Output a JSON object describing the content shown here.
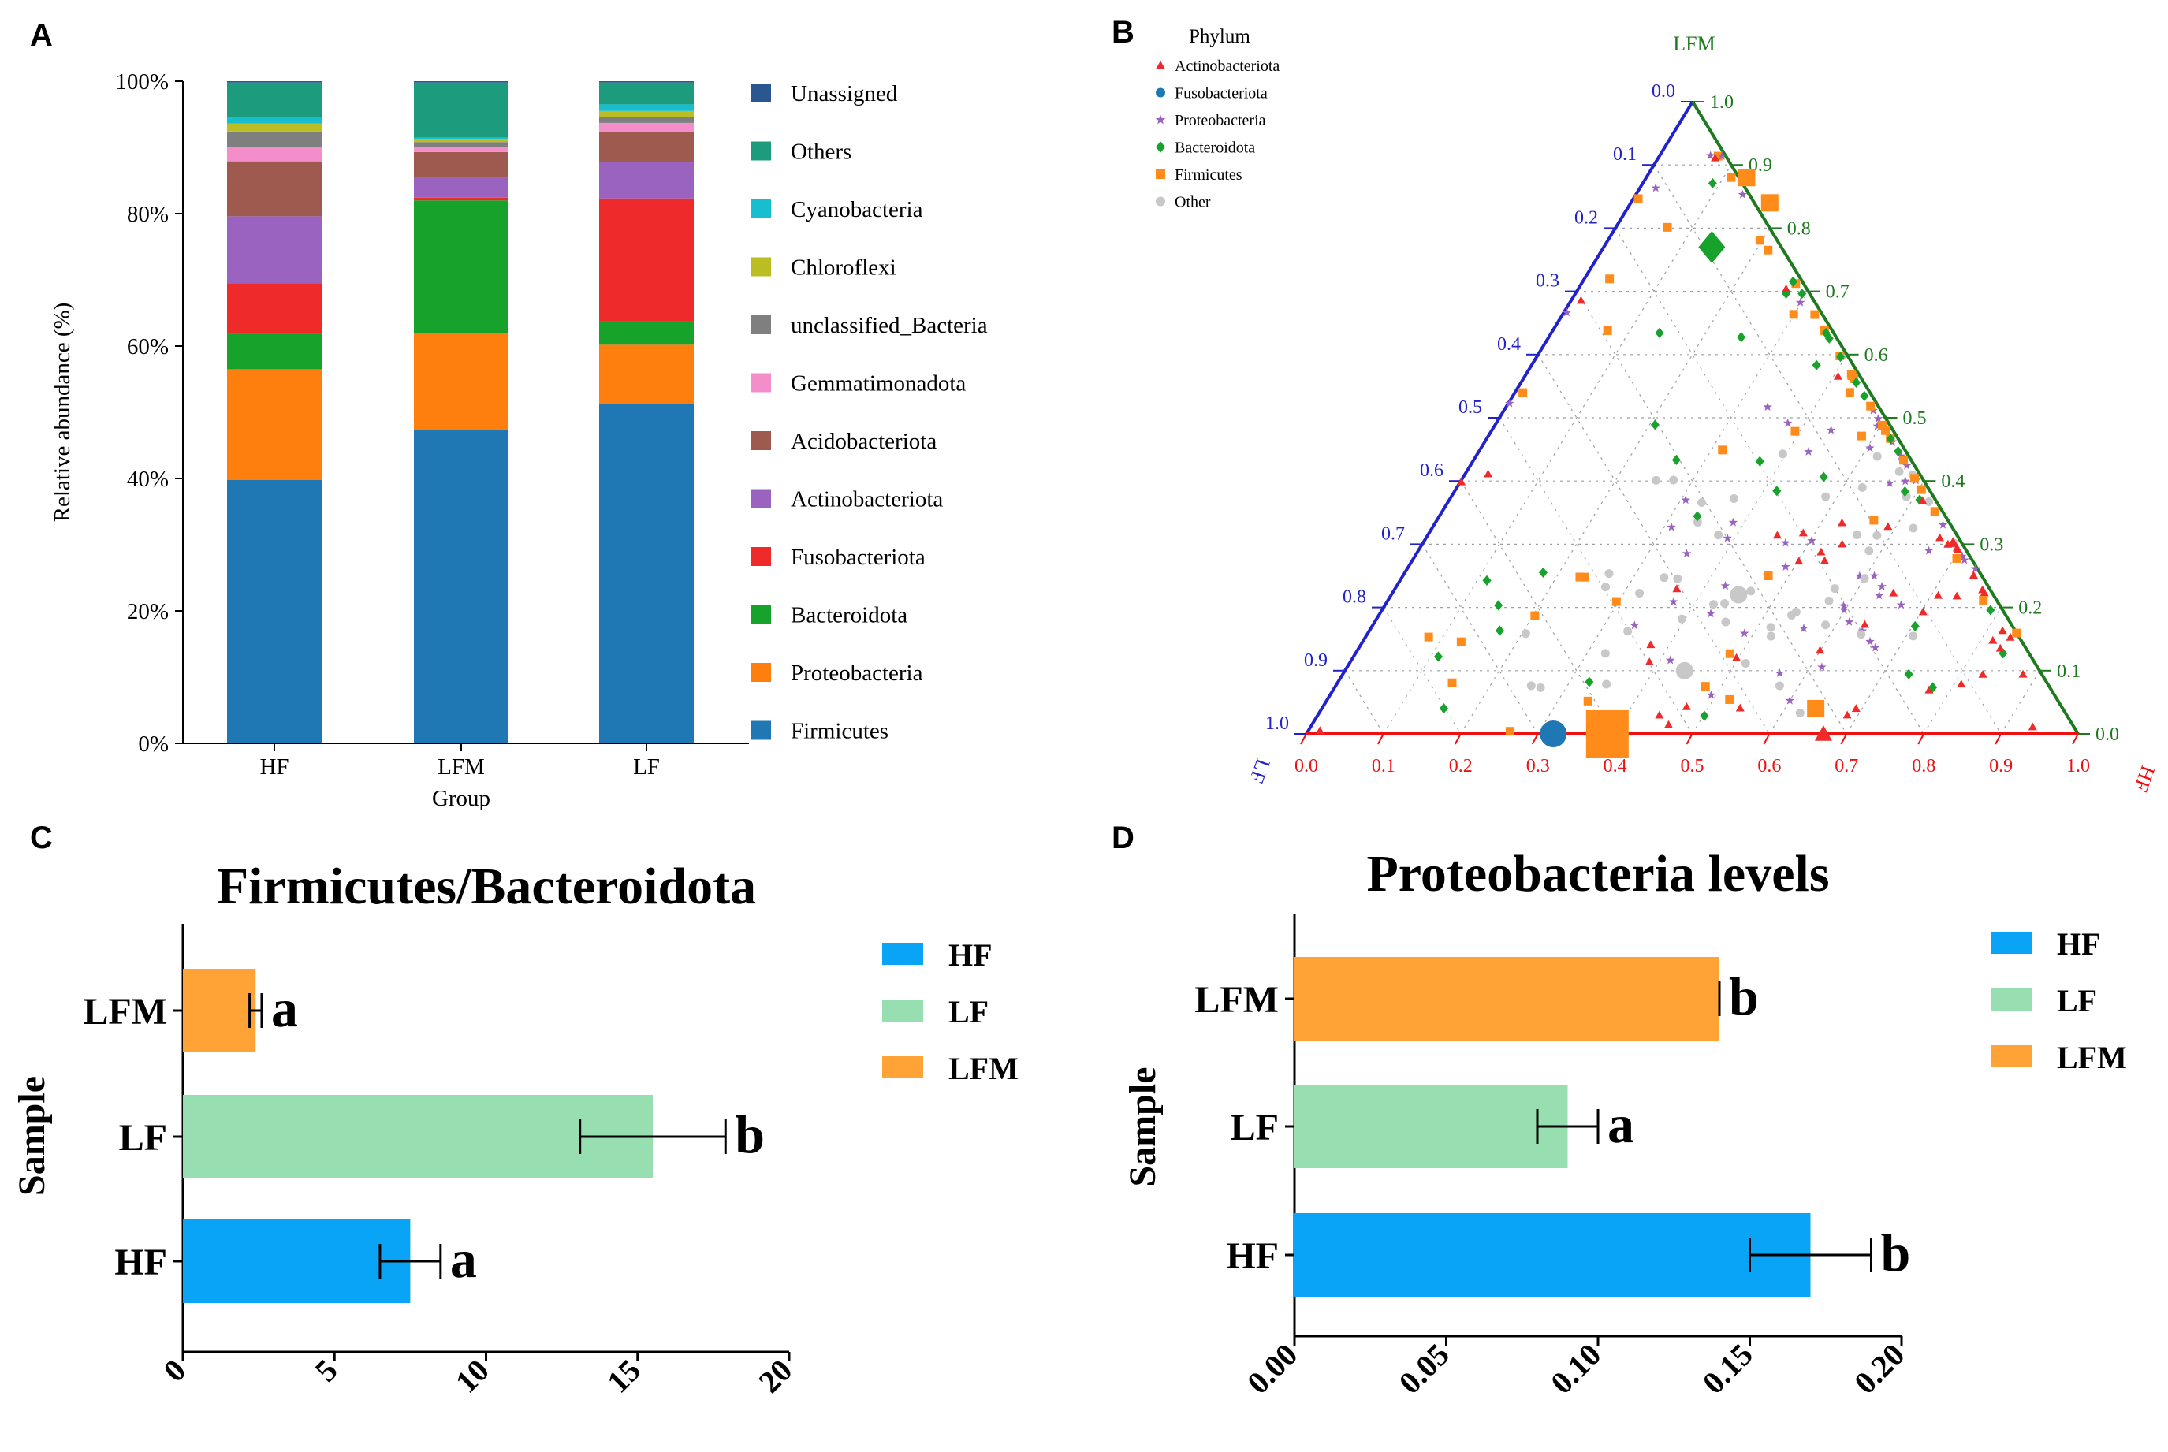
{
  "panels": {
    "A": "A",
    "B": "B",
    "C": "C",
    "D": "D"
  },
  "colors": {
    "Unassigned": "#2a5790",
    "Others": "#1c9c7d",
    "Cyanobacteria": "#17becf",
    "Chloroflexi": "#bcbd22",
    "unclassified_Bacteria": "#7f7f7f",
    "Gemmatimonadota": "#f48ecb",
    "Acidobacteriota": "#9e5a4f",
    "Actinobacteriota": "#9b63c0",
    "Fusobacteriota": "#ef2a2a",
    "Bacteroidota": "#17a22c",
    "Proteobacteria": "#ff7f0e",
    "Firmicutes": "#1f77b4",
    "HF": "#0aa4f7",
    "LF": "#97deb1",
    "LFM": "#ffa337",
    "axis_blue": "#2222cc",
    "axis_green": "#1e7a1e",
    "axis_red": "#ee1111"
  },
  "chart_data": [
    {
      "id": "A",
      "type": "bar",
      "stacked": true,
      "ylabel": "Relative abundance (%)",
      "xlabel": "Group",
      "ylim": [
        0,
        100
      ],
      "yticks": [
        "0%",
        "20%",
        "40%",
        "60%",
        "80%",
        "100%"
      ],
      "categories": [
        "HF",
        "LFM",
        "LF"
      ],
      "legend": [
        "Unassigned",
        "Others",
        "Cyanobacteria",
        "Chloroflexi",
        "unclassified_Bacteria",
        "Gemmatimonadota",
        "Acidobacteriota",
        "Actinobacteriota",
        "Fusobacteriota",
        "Bacteroidota",
        "Proteobacteria",
        "Firmicutes"
      ],
      "series": [
        {
          "name": "Firmicutes",
          "values": [
            39.8,
            47.3,
            51.3
          ]
        },
        {
          "name": "Proteobacteria",
          "values": [
            16.7,
            14.7,
            8.9
          ]
        },
        {
          "name": "Bacteroidota",
          "values": [
            5.3,
            20.0,
            3.5
          ]
        },
        {
          "name": "Fusobacteriota",
          "values": [
            7.7,
            0.4,
            18.6
          ]
        },
        {
          "name": "Actinobacteriota",
          "values": [
            10.1,
            3.0,
            5.5
          ]
        },
        {
          "name": "Acidobacteriota",
          "values": [
            8.3,
            3.9,
            4.5
          ]
        },
        {
          "name": "Gemmatimonadota",
          "values": [
            2.2,
            0.8,
            1.4
          ]
        },
        {
          "name": "unclassified_Bacteria",
          "values": [
            2.3,
            0.7,
            0.9
          ]
        },
        {
          "name": "Chloroflexi",
          "values": [
            1.2,
            0.5,
            0.9
          ]
        },
        {
          "name": "Cyanobacteria",
          "values": [
            1.0,
            0.2,
            1.0
          ]
        },
        {
          "name": "Others",
          "values": [
            5.2,
            8.3,
            3.3
          ]
        },
        {
          "name": "Unassigned",
          "values": [
            0.2,
            0.2,
            0.2
          ]
        }
      ]
    },
    {
      "id": "B",
      "type": "scatter",
      "subtype": "ternary",
      "legend_title": "Phylum",
      "legend": [
        "Actinobacteriota",
        "Fusobacteriota",
        "Proteobacteria",
        "Bacteroidota",
        "Firmicutes",
        "Other"
      ],
      "axis_labels": {
        "top": "LFM",
        "left": "LF",
        "right": "HF"
      },
      "ticks": [
        "0.0",
        "0.1",
        "0.2",
        "0.3",
        "0.4",
        "0.5",
        "0.6",
        "0.7",
        "0.8",
        "0.9",
        "1.0"
      ],
      "big_points": [
        {
          "phylum": "Fusobacteriota",
          "HF": 0.32,
          "LFM": 0.0,
          "size": 3
        },
        {
          "phylum": "Firmicutes",
          "HF": 0.39,
          "LFM": 0.0,
          "size": 5
        },
        {
          "phylum": "Bacteroidota",
          "HF": 0.14,
          "LFM": 0.77,
          "size": 3
        },
        {
          "phylum": "Firmicutes",
          "HF": 0.64,
          "LFM": 0.04,
          "size": 2
        },
        {
          "phylum": "Actinobacteriota",
          "HF": 0.67,
          "LFM": 0.0,
          "size": 2
        },
        {
          "phylum": "Firmicutes",
          "HF": 0.13,
          "LFM": 0.88,
          "size": 2
        },
        {
          "phylum": "Firmicutes",
          "HF": 0.18,
          "LFM": 0.84,
          "size": 2
        },
        {
          "phylum": "Other",
          "HF": 0.45,
          "LFM": 0.22,
          "size": 2
        },
        {
          "phylum": "Other",
          "HF": 0.44,
          "LFM": 0.1,
          "size": 2
        }
      ]
    },
    {
      "id": "C",
      "type": "bar",
      "orientation": "horizontal",
      "title": "Firmicutes/Bacteroidota",
      "ylabel": "Sample",
      "categories": [
        "LFM",
        "LF",
        "HF"
      ],
      "values": [
        2.4,
        15.5,
        7.5
      ],
      "errors": [
        0.2,
        2.4,
        1.0
      ],
      "letters": [
        "a",
        "b",
        "a"
      ],
      "xlim": [
        0,
        20
      ],
      "xticks": [
        "0",
        "5",
        "10",
        "15",
        "20"
      ],
      "legend": [
        "HF",
        "LF",
        "LFM"
      ]
    },
    {
      "id": "D",
      "type": "bar",
      "orientation": "horizontal",
      "title": "Proteobacteria levels",
      "ylabel": "Sample",
      "categories": [
        "LFM",
        "LF",
        "HF"
      ],
      "values": [
        0.14,
        0.09,
        0.17
      ],
      "errors": [
        0.0,
        0.01,
        0.02
      ],
      "letters": [
        "b",
        "a",
        "b"
      ],
      "xlim": [
        0,
        0.2
      ],
      "xticks": [
        "0.00",
        "0.05",
        "0.10",
        "0.15",
        "0.20"
      ],
      "legend": [
        "HF",
        "LF",
        "LFM"
      ]
    }
  ]
}
